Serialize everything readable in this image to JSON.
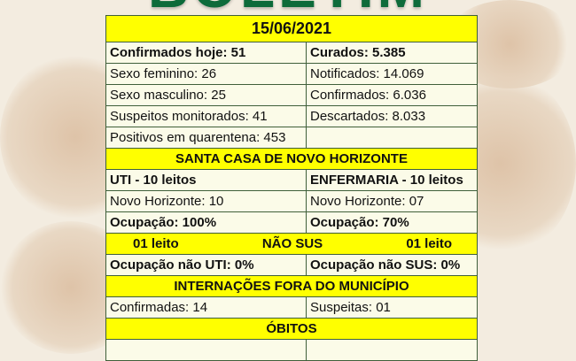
{
  "header": {
    "title": "BOLETIM",
    "date": "15/06/2021"
  },
  "summary": {
    "left": [
      "Confirmados hoje: 51",
      "Sexo feminino: 26",
      "Sexo masculino: 25",
      "Suspeitos monitorados: 41",
      "Positivos em quarentena: 453"
    ],
    "right": [
      "Curados: 5.385",
      "Notificados: 14.069",
      "Confirmados: 6.036",
      "Descartados: 8.033",
      ""
    ]
  },
  "santa_casa": {
    "heading": "SANTA CASA DE NOVO HORIZONTE",
    "uti": {
      "title": "UTI - 10 leitos",
      "novo_horizonte": "Novo Horizonte: 10",
      "ocupacao": "Ocupação: 100%"
    },
    "enfermaria": {
      "title": "ENFERMARIA - 10 leitos",
      "novo_horizonte": "Novo Horizonte: 07",
      "ocupacao": "Ocupação: 70%"
    },
    "nao_sus": {
      "left": "01 leito",
      "center": "NÃO SUS",
      "right": "01 leito"
    },
    "ocupacao_nao_uti": "Ocupação não UTI: 0%",
    "ocupacao_nao_sus": "Ocupação não SUS: 0%"
  },
  "internacoes": {
    "heading": "INTERNAÇÕES FORA DO MUNICÍPIO",
    "confirmadas": "Confirmadas: 14",
    "suspeitas": "Suspeitas: 01"
  },
  "obitos": {
    "heading": "ÓBITOS"
  },
  "colors": {
    "title_green": "#0d6b3a",
    "highlight": "#ffff00",
    "cell": "#fbfbe8",
    "border": "#3f5f3a"
  }
}
